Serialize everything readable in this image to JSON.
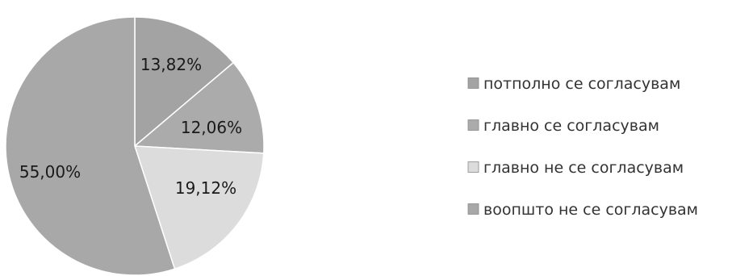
{
  "chart_data": {
    "type": "pie",
    "title": "",
    "start_angle_deg": 0,
    "direction": "clockwise",
    "legend_position": "right",
    "slices": [
      {
        "label": "потполно се согласувам",
        "value": 13.82,
        "display": "13,82%",
        "color": "#a3a3a3"
      },
      {
        "label": "главно се согласувам",
        "value": 12.06,
        "display": "12,06%",
        "color": "#ababab"
      },
      {
        "label": "главно не се согласувам",
        "value": 19.12,
        "display": "19,12%",
        "color": "#dcdcdc"
      },
      {
        "label": "воопшто не се согласувам",
        "value": 55.0,
        "display": "55,00%",
        "color": "#a8a8a8"
      }
    ]
  }
}
